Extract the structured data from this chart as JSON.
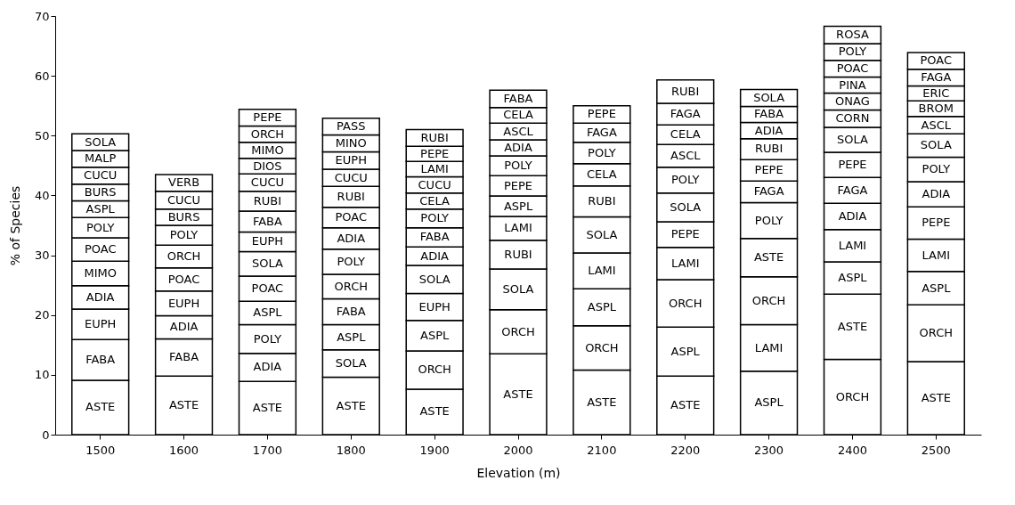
{
  "chart_data": {
    "type": "bar",
    "stacked": true,
    "xlabel": "Elevation (m)",
    "ylabel": "% of Species",
    "categories": [
      "1500",
      "1600",
      "1700",
      "1800",
      "1900",
      "2000",
      "2100",
      "2200",
      "2300",
      "2400",
      "2500"
    ],
    "ylim": [
      0,
      70
    ],
    "yticks": [
      0,
      10,
      20,
      30,
      40,
      50,
      60,
      70
    ],
    "grid": false,
    "series": [
      {
        "color": "#ffffff",
        "values": [
          9.1,
          9.8,
          8.9,
          9.6,
          7.6,
          13.5,
          10.8,
          9.8,
          10.6,
          12.6,
          12.2
        ],
        "value_labels": [
          "ASTE",
          "ASTE",
          "ASTE",
          "ASTE",
          "ASTE",
          "ASTE",
          "ASTE",
          "ASTE",
          "ASPL",
          "ORCH",
          "ASTE"
        ]
      },
      {
        "color": "#ffffff",
        "values": [
          6.8,
          6.2,
          4.7,
          4.6,
          6.4,
          7.4,
          7.4,
          8.2,
          7.8,
          10.9,
          9.5
        ],
        "value_labels": [
          "FABA",
          "FABA",
          "ADIA",
          "SOLA",
          "ORCH",
          "ORCH",
          "ORCH",
          "ASPL",
          "LAMI",
          "ASTE",
          "ORCH"
        ]
      },
      {
        "color": "#ffffff",
        "values": [
          5.1,
          3.9,
          4.8,
          4.2,
          5.1,
          6.8,
          6.2,
          7.9,
          8.0,
          5.4,
          5.6
        ],
        "value_labels": [
          "EUPH",
          "ADIA",
          "POLY",
          "ASPL",
          "ASPL",
          "SOLA",
          "ASPL",
          "ORCH",
          "ORCH",
          "ASPL",
          "ASPL"
        ]
      },
      {
        "color": "#ffffff",
        "values": [
          3.9,
          4.1,
          3.9,
          4.3,
          4.5,
          4.8,
          6.0,
          5.4,
          6.4,
          5.4,
          5.4
        ],
        "value_labels": [
          "ADIA",
          "EUPH",
          "ASPL",
          "FABA",
          "EUPH",
          "RUBI",
          "LAMI",
          "LAMI",
          "ASTE",
          "LAMI",
          "LAMI"
        ]
      },
      {
        "color": "#ffffff",
        "values": [
          4.1,
          3.9,
          4.2,
          4.1,
          4.7,
          4.0,
          6.0,
          4.3,
          6.0,
          4.4,
          5.4
        ],
        "value_labels": [
          "MIMO",
          "POAC",
          "POAC",
          "ORCH",
          "SOLA",
          "LAMI",
          "SOLA",
          "PEPE",
          "POLY",
          "ADIA",
          "PEPE"
        ]
      },
      {
        "color": "#ffffff",
        "values": [
          3.9,
          3.8,
          4.1,
          4.2,
          3.1,
          3.4,
          5.2,
          4.8,
          3.6,
          4.3,
          4.2
        ],
        "value_labels": [
          "POAC",
          "ORCH",
          "SOLA",
          "POLY",
          "ADIA",
          "ASPL",
          "RUBI",
          "SOLA",
          "FAGA",
          "FAGA",
          "ADIA"
        ]
      },
      {
        "color": "#ffffff",
        "values": [
          3.4,
          3.3,
          3.3,
          3.6,
          3.2,
          3.4,
          3.7,
          4.3,
          3.6,
          4.2,
          4.1
        ],
        "value_labels": [
          "POLY",
          "POLY",
          "EUPH",
          "ADIA",
          "FABA",
          "PEPE",
          "CELA",
          "POLY",
          "PEPE",
          "PEPE",
          "POLY"
        ]
      },
      {
        "color": "#ffffff",
        "values": [
          2.8,
          2.7,
          3.5,
          3.4,
          3.1,
          3.3,
          3.6,
          3.8,
          3.5,
          4.2,
          3.9
        ],
        "value_labels": [
          "ASPL",
          "BURS",
          "FABA",
          "POAC",
          "POLY",
          "POLY",
          "POLY",
          "ASCL",
          "RUBI",
          "SOLA",
          "SOLA"
        ]
      },
      {
        "color": "#ffffff",
        "values": [
          2.8,
          3.0,
          3.3,
          3.5,
          2.7,
          2.7,
          3.2,
          3.3,
          2.7,
          2.9,
          2.9
        ],
        "value_labels": [
          "BURS",
          "CUCU",
          "RUBI",
          "RUBI",
          "CELA",
          "ADIA",
          "FAGA",
          "CELA",
          "ADIA",
          "CORN",
          "ASCL"
        ]
      },
      {
        "color": "#ffffff",
        "values": [
          2.8,
          2.8,
          2.9,
          2.9,
          2.7,
          2.8,
          2.9,
          3.6,
          2.7,
          2.8,
          2.6
        ],
        "value_labels": [
          "CUCU",
          "VERB",
          "CUCU",
          "CUCU",
          "CUCU",
          "ASCL",
          "PEPE",
          "FAGA",
          "FABA",
          "ONAG",
          "BROM"
        ]
      },
      {
        "color": "#ffffff",
        "values": [
          2.8,
          null,
          2.6,
          2.9,
          2.6,
          2.6,
          null,
          3.9,
          2.8,
          2.7,
          2.5
        ],
        "value_labels": [
          "MALP",
          null,
          "DIOS",
          "EUPH",
          "LAMI",
          "CELA",
          null,
          "RUBI",
          "SOLA",
          "PINA",
          "ERIC"
        ]
      },
      {
        "color": "#ffffff",
        "values": [
          2.8,
          null,
          2.7,
          2.8,
          2.5,
          2.9,
          null,
          null,
          null,
          2.8,
          2.8
        ],
        "value_labels": [
          "SOLA",
          null,
          "MIMO",
          "MINO",
          "PEPE",
          "FABA",
          null,
          null,
          null,
          "POAC",
          "FAGA"
        ]
      },
      {
        "color": "#ffffff",
        "values": [
          null,
          null,
          2.7,
          2.8,
          2.8,
          null,
          null,
          null,
          null,
          2.8,
          2.8
        ],
        "value_labels": [
          null,
          null,
          "ORCH",
          "PASS",
          "RUBI",
          null,
          null,
          null,
          null,
          "POLY",
          "POAC"
        ]
      },
      {
        "color": "#ffffff",
        "values": [
          null,
          null,
          2.8,
          null,
          null,
          null,
          null,
          null,
          null,
          2.9,
          null
        ],
        "value_labels": [
          null,
          null,
          "PEPE",
          null,
          null,
          null,
          null,
          null,
          null,
          "ROSA",
          null
        ]
      }
    ]
  }
}
